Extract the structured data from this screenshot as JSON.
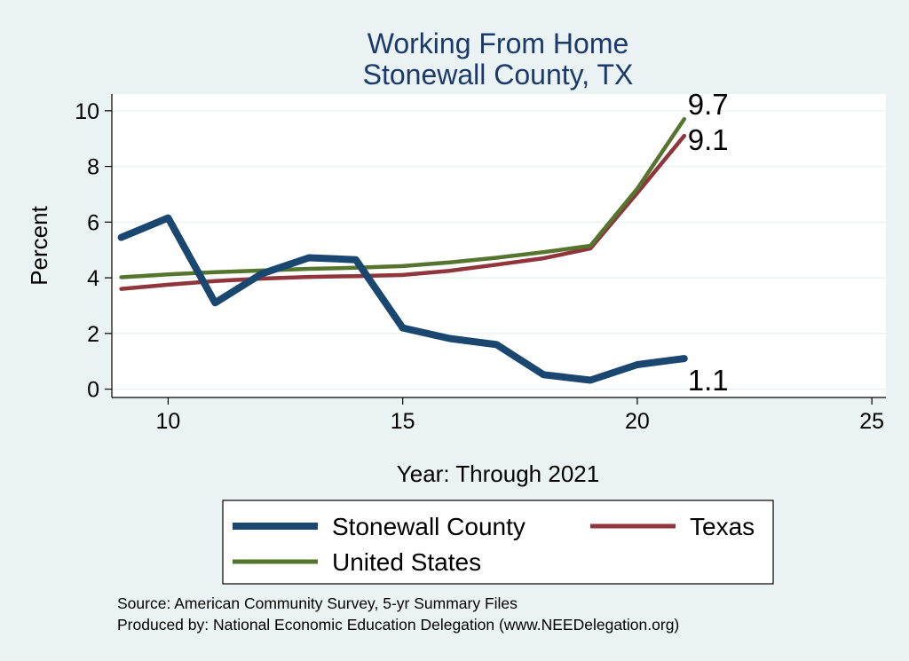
{
  "chart_data": {
    "type": "line",
    "title": [
      "Working From Home",
      "Stonewall County, TX"
    ],
    "xlabel": "Year: Through 2021",
    "ylabel": "Percent",
    "xlim": [
      8.8,
      25.3
    ],
    "ylim": [
      -0.3,
      10.6
    ],
    "xticks": [
      10,
      15,
      20,
      25
    ],
    "yticks": [
      0,
      2,
      4,
      6,
      8,
      10
    ],
    "grid": true,
    "legend_position": "bottom",
    "series": [
      {
        "name": "Stonewall County",
        "color": "#1a476f",
        "x": [
          9,
          10,
          11,
          12,
          13,
          14,
          15,
          16,
          17,
          18,
          19,
          20,
          21
        ],
        "y": [
          5.45,
          6.15,
          3.1,
          4.15,
          4.72,
          4.65,
          2.2,
          1.82,
          1.6,
          0.52,
          0.32,
          0.88,
          1.1
        ],
        "end_label": "1.1"
      },
      {
        "name": "Texas",
        "color": "#90353b",
        "x": [
          9,
          10,
          11,
          12,
          13,
          14,
          15,
          16,
          17,
          18,
          19,
          20,
          21
        ],
        "y": [
          3.6,
          3.75,
          3.88,
          3.97,
          4.03,
          4.06,
          4.1,
          4.25,
          4.47,
          4.7,
          5.05,
          7.05,
          9.1
        ],
        "end_label": "9.1"
      },
      {
        "name": "United States",
        "color": "#55752f",
        "x": [
          9,
          10,
          11,
          12,
          13,
          14,
          15,
          16,
          17,
          18,
          19,
          20,
          21
        ],
        "y": [
          4.02,
          4.12,
          4.2,
          4.26,
          4.32,
          4.36,
          4.42,
          4.55,
          4.72,
          4.92,
          5.15,
          7.2,
          9.7
        ],
        "end_label": "9.7"
      }
    ],
    "legend": {
      "rows": [
        [
          "Stonewall County",
          "Texas"
        ],
        [
          "United States"
        ]
      ]
    },
    "notes": [
      "Source: American Community Survey, 5-yr Summary Files",
      "Produced by: National Economic Education Delegation (www.NEEDelegation.org)"
    ]
  }
}
